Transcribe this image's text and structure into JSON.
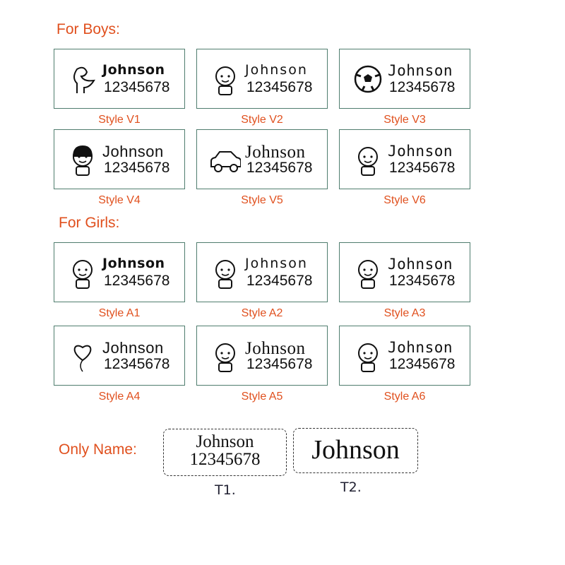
{
  "boys": {
    "heading": "For Boys:",
    "styles": [
      {
        "label": "Style V1",
        "name": "Johnson",
        "number": "12345678",
        "icon": "dinosaur-icon",
        "font": "f-round"
      },
      {
        "label": "Style V2",
        "name": "Johnson",
        "number": "12345678",
        "icon": "boy-icon",
        "font": "f-wide"
      },
      {
        "label": "Style V3",
        "name": "Johnson",
        "number": "12345678",
        "icon": "soccer-ball-icon",
        "font": "f-mono"
      },
      {
        "label": "Style V4",
        "name": "Johnson",
        "number": "12345678",
        "icon": "boy-black-hair-icon",
        "font": ""
      },
      {
        "label": "Style V5",
        "name": "Johnson",
        "number": "12345678",
        "icon": "car-icon",
        "font": "f-serif"
      },
      {
        "label": "Style V6",
        "name": "Johnson",
        "number": "12345678",
        "icon": "boy-cap-icon",
        "font": "f-mono"
      }
    ]
  },
  "girls": {
    "heading": "For Girls:",
    "styles": [
      {
        "label": "Style A1",
        "name": "Johnson",
        "number": "12345678",
        "icon": "girl-pigtails-icon",
        "font": "f-round"
      },
      {
        "label": "Style A2",
        "name": "Johnson",
        "number": "12345678",
        "icon": "princess-icon",
        "font": "f-wide"
      },
      {
        "label": "Style A3",
        "name": "Johnson",
        "number": "12345678",
        "icon": "mermaid-icon",
        "font": "f-mono"
      },
      {
        "label": "Style A4",
        "name": "Johnson",
        "number": "12345678",
        "icon": "heart-balloon-icon",
        "font": ""
      },
      {
        "label": "Style A5",
        "name": "Johnson",
        "number": "12345678",
        "icon": "girl-long-hair-icon",
        "font": "f-serif"
      },
      {
        "label": "Style A6",
        "name": "Johnson",
        "number": "12345678",
        "icon": "girl-flower-icon",
        "font": "f-mono"
      }
    ]
  },
  "only_name": {
    "heading": "Only Name:",
    "t1": {
      "name": "Johnson",
      "number": "12345678",
      "label": "T1."
    },
    "t2": {
      "name": "Johnson",
      "label": "T2."
    }
  },
  "colors": {
    "accent": "#e0501e",
    "card_border": "#4f7d6e"
  }
}
